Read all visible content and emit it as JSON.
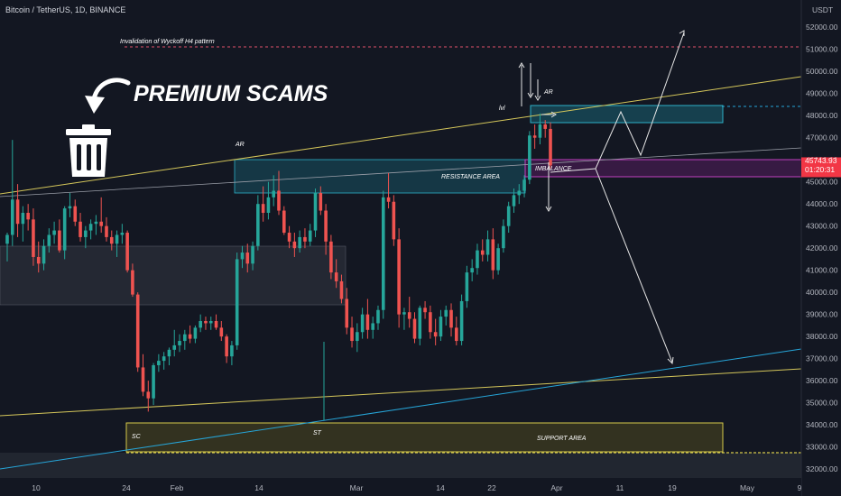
{
  "header": {
    "title": "Bitcoin / TetherUS, 1D, BINANCE",
    "currency": "USDT"
  },
  "price_badge": {
    "price": "45743.93",
    "countdown": "01:20:31",
    "color": "#f23645"
  },
  "banner": {
    "text": "PREMIUM SCAMS",
    "icons": [
      "curved-arrow-icon",
      "trash-can-icon"
    ]
  },
  "annotations": {
    "invalidation": "Invalidation of Wyckoff H4 pattern",
    "ar_left": "AR",
    "ar_right": "AR",
    "lvl": "lvl",
    "resistance": "RESISTANCE AREA",
    "imbalance": "IMBALANCE",
    "sc": "SC",
    "st": "ST",
    "support": "SUPPORT AREA"
  },
  "colors": {
    "background": "#131722",
    "up": "#26a69a",
    "down": "#ef5350",
    "trendline": "#d4c65a",
    "channel": "#26a5d8",
    "resistance_zone": "#1e8ca0",
    "imbalance_zone": "#c040c0",
    "support_zone": "#d4c84a"
  },
  "chart_data": {
    "type": "candlestick",
    "title": "Bitcoin / TetherUS, 1D, BINANCE",
    "x_ticks": [
      "10",
      "24",
      "Feb",
      "14",
      "Mar",
      "14",
      "22",
      "Apr",
      "11",
      "19",
      "May",
      "9"
    ],
    "y_ticks": [
      "52000.00",
      "51000.00",
      "50000.00",
      "49000.00",
      "48000.00",
      "47000.00",
      "46000.00",
      "45000.00",
      "44000.00",
      "43000.00",
      "42000.00",
      "41000.00",
      "40000.00",
      "39000.00",
      "38000.00",
      "37000.00",
      "36000.00",
      "35000.00",
      "34000.00",
      "33000.00",
      "32000.00"
    ],
    "ylim": [
      31800,
      52500
    ],
    "y_scale": "linear",
    "grid": false,
    "candles": [
      [
        42200,
        42700,
        41400,
        42600
      ],
      [
        42600,
        46900,
        42100,
        44200
      ],
      [
        44200,
        44900,
        42500,
        43100
      ],
      [
        43100,
        43900,
        42300,
        43600
      ],
      [
        43600,
        44000,
        42800,
        43300
      ],
      [
        43300,
        43800,
        41200,
        41600
      ],
      [
        41600,
        42300,
        40900,
        41300
      ],
      [
        41300,
        42400,
        41000,
        42100
      ],
      [
        42100,
        42900,
        41800,
        42600
      ],
      [
        42600,
        43200,
        42200,
        42800
      ],
      [
        42800,
        43300,
        41800,
        41900
      ],
      [
        41900,
        43900,
        41500,
        43800
      ],
      [
        43800,
        44500,
        43400,
        43900
      ],
      [
        43900,
        44200,
        43000,
        43200
      ],
      [
        43200,
        43600,
        42300,
        42500
      ],
      [
        42500,
        43000,
        42000,
        42800
      ],
      [
        42800,
        43300,
        42400,
        43100
      ],
      [
        43100,
        43500,
        42600,
        43200
      ],
      [
        43200,
        44300,
        42700,
        43000
      ],
      [
        43000,
        43400,
        42300,
        42500
      ],
      [
        42500,
        42800,
        41900,
        42200
      ],
      [
        42200,
        42800,
        41600,
        42600
      ],
      [
        42600,
        43100,
        42200,
        42700
      ],
      [
        42700,
        42800,
        40900,
        41000
      ],
      [
        41000,
        41300,
        39800,
        39900
      ],
      [
        39900,
        40000,
        36400,
        36600
      ],
      [
        36600,
        37200,
        35300,
        35500
      ],
      [
        35500,
        36000,
        34600,
        35200
      ],
      [
        35200,
        36800,
        34900,
        36700
      ],
      [
        36700,
        37200,
        36400,
        36900
      ],
      [
        36900,
        37300,
        36500,
        37100
      ],
      [
        37100,
        37500,
        36700,
        37400
      ],
      [
        37400,
        38300,
        37100,
        37600
      ],
      [
        37600,
        38100,
        37300,
        37800
      ],
      [
        37800,
        38300,
        37400,
        38100
      ],
      [
        38100,
        38500,
        37700,
        37900
      ],
      [
        37900,
        38500,
        37700,
        38400
      ],
      [
        38400,
        39000,
        38200,
        38700
      ],
      [
        38700,
        38900,
        38300,
        38600
      ],
      [
        38600,
        38900,
        38300,
        38700
      ],
      [
        38700,
        39000,
        38300,
        38400
      ],
      [
        38400,
        38700,
        37800,
        38000
      ],
      [
        38000,
        38100,
        36800,
        37100
      ],
      [
        37100,
        37800,
        36700,
        37600
      ],
      [
        37600,
        41800,
        37400,
        41500
      ],
      [
        41500,
        42100,
        41100,
        41800
      ],
      [
        41800,
        42200,
        40900,
        41300
      ],
      [
        41300,
        42300,
        41000,
        42100
      ],
      [
        42100,
        44400,
        41900,
        44000
      ],
      [
        44000,
        44800,
        43200,
        43600
      ],
      [
        43600,
        45000,
        43300,
        44300
      ],
      [
        44300,
        45300,
        43900,
        44600
      ],
      [
        44600,
        45500,
        43500,
        43700
      ],
      [
        43700,
        43900,
        42600,
        42700
      ],
      [
        42700,
        43000,
        42000,
        42300
      ],
      [
        42300,
        42700,
        41600,
        42000
      ],
      [
        42000,
        42800,
        41800,
        42500
      ],
      [
        42500,
        42900,
        42000,
        42300
      ],
      [
        42300,
        43100,
        42100,
        42800
      ],
      [
        42800,
        44700,
        42500,
        44500
      ],
      [
        44500,
        44800,
        43500,
        43700
      ],
      [
        43700,
        44000,
        41700,
        42300
      ],
      [
        42300,
        42600,
        40600,
        40900
      ],
      [
        40900,
        41500,
        40200,
        40500
      ],
      [
        40500,
        40800,
        39500,
        39700
      ],
      [
        39700,
        40200,
        38100,
        38400
      ],
      [
        38400,
        38900,
        37500,
        37800
      ],
      [
        37800,
        38600,
        37300,
        38200
      ],
      [
        38200,
        39300,
        37900,
        39000
      ],
      [
        39000,
        39700,
        37900,
        38300
      ],
      [
        38300,
        38900,
        37900,
        38600
      ],
      [
        38600,
        39400,
        38300,
        39200
      ],
      [
        39200,
        44600,
        38800,
        44300
      ],
      [
        44300,
        45400,
        43800,
        44100
      ],
      [
        44100,
        44400,
        42100,
        42400
      ],
      [
        42400,
        42900,
        38400,
        39000
      ],
      [
        39000,
        39300,
        38300,
        39100
      ],
      [
        39100,
        39800,
        38400,
        38800
      ],
      [
        38800,
        39100,
        37700,
        37900
      ],
      [
        37900,
        39400,
        37600,
        39300
      ],
      [
        39300,
        39600,
        38800,
        39100
      ],
      [
        39100,
        39400,
        37900,
        38200
      ],
      [
        38200,
        38800,
        37600,
        38000
      ],
      [
        38000,
        39200,
        37800,
        38900
      ],
      [
        38900,
        39400,
        38500,
        39200
      ],
      [
        39200,
        39500,
        38000,
        38400
      ],
      [
        38400,
        38900,
        37600,
        37800
      ],
      [
        37800,
        39900,
        37600,
        39600
      ],
      [
        39600,
        41200,
        39300,
        40900
      ],
      [
        40900,
        41500,
        40500,
        41100
      ],
      [
        41100,
        42200,
        40800,
        41900
      ],
      [
        41900,
        42400,
        41400,
        41700
      ],
      [
        41700,
        42800,
        41400,
        42400
      ],
      [
        42400,
        42900,
        40600,
        41000
      ],
      [
        41000,
        42200,
        40800,
        42000
      ],
      [
        42000,
        43300,
        41800,
        43000
      ],
      [
        43000,
        44100,
        42700,
        43900
      ],
      [
        43900,
        44700,
        43600,
        44400
      ],
      [
        44400,
        44900,
        44000,
        44600
      ],
      [
        44600,
        45300,
        44300,
        45100
      ],
      [
        45100,
        47300,
        44900,
        47100
      ],
      [
        47100,
        47600,
        46500,
        47000
      ],
      [
        47000,
        48100,
        46700,
        47600
      ],
      [
        47600,
        47800,
        47000,
        47400
      ],
      [
        47400,
        47700,
        45600,
        45744
      ]
    ]
  }
}
